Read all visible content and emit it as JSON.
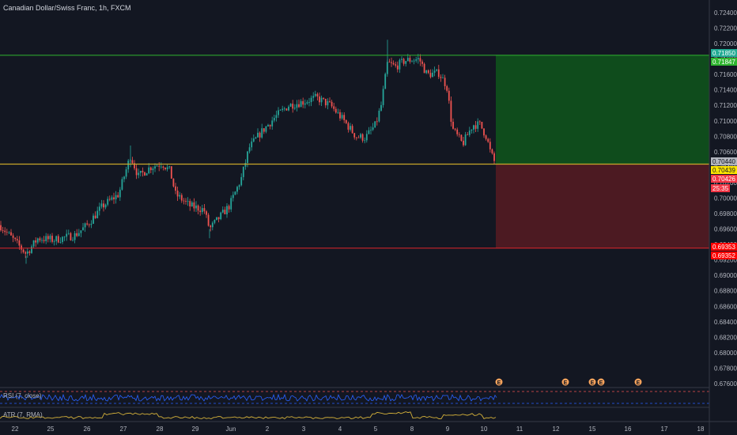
{
  "header": {
    "title": "Canadian Dollar/Swiss Franc, 1h, FXCM"
  },
  "price_axis": {
    "ticks": [
      "0.72400",
      "0.72200",
      "0.72000",
      "0.71800",
      "0.71600",
      "0.71400",
      "0.71200",
      "0.71000",
      "0.70800",
      "0.70600",
      "0.70400",
      "0.70200",
      "0.70000",
      "0.69800",
      "0.69600",
      "0.69400",
      "0.69200",
      "0.69000",
      "0.68800",
      "0.68600",
      "0.68400",
      "0.68200",
      "0.68000",
      "0.67800",
      "0.67600"
    ],
    "tags": [
      {
        "label": "0.71850",
        "color": "#22ab94",
        "text_color": "#ffffff"
      },
      {
        "label": "0.71847",
        "color": "#2fb52f",
        "text_color": "#ffffff"
      },
      {
        "label": "0.70440",
        "color": "#b2b5be",
        "text_color": "#131722"
      },
      {
        "label": "0.70439",
        "color": "#ffe600",
        "text_color": "#131722"
      },
      {
        "label": "0.70426",
        "color": "#f23645",
        "text_color": "#ffffff"
      },
      {
        "label": "25:35",
        "color": "#f23645",
        "text_color": "#ffffff"
      },
      {
        "label": "0.69353",
        "color": "#ff0000",
        "text_color": "#ffffff"
      },
      {
        "label": "0.69352",
        "color": "#ff0000",
        "text_color": "#ffffff"
      }
    ]
  },
  "time_axis": {
    "ticks": [
      "22",
      "25",
      "26",
      "27",
      "28",
      "29",
      "Jun",
      "2",
      "3",
      "4",
      "5",
      "8",
      "9",
      "10",
      "11",
      "12",
      "15",
      "16",
      "17",
      "18"
    ]
  },
  "indicators": {
    "rsi_label": "RSI (7, close)",
    "atr_label": "ATR (7, RMA)"
  },
  "position": {
    "entry": 0.7044,
    "target": 0.7185,
    "stop": 0.69353,
    "profit_color": "#0f4c1c",
    "loss_color": "#4c1a22"
  },
  "colors": {
    "up": "#26a69a",
    "down": "#ef5350",
    "rsi_line": "#2962ff",
    "atr_line": "#d4b13a"
  },
  "events": [
    {
      "icon": "earnings-icon",
      "glyph": "E"
    },
    {
      "icon": "earnings-icon",
      "glyph": "E"
    },
    {
      "icon": "earnings-icon",
      "glyph": "E"
    },
    {
      "icon": "earnings-icon",
      "glyph": "E"
    },
    {
      "icon": "earnings-icon",
      "glyph": "E"
    }
  ]
}
